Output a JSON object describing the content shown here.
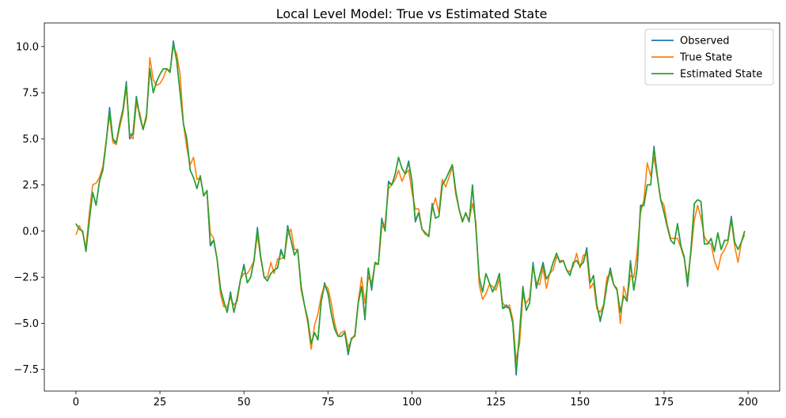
{
  "chart_data": {
    "type": "line",
    "title": "Local Level Model: True vs Estimated State",
    "xlabel": "",
    "ylabel": "",
    "xlim": [
      -9.4,
      209.4
    ],
    "ylim": [
      -8.67,
      11.28
    ],
    "xticks": [
      0,
      25,
      50,
      75,
      100,
      125,
      150,
      175,
      200
    ],
    "xtick_labels": [
      "0",
      "25",
      "50",
      "75",
      "100",
      "125",
      "150",
      "175",
      "200"
    ],
    "yticks": [
      -7.5,
      -5.0,
      -2.5,
      0.0,
      2.5,
      5.0,
      7.5,
      10.0
    ],
    "ytick_labels": [
      "−7.5",
      "−5.0",
      "−2.5",
      "0.0",
      "2.5",
      "5.0",
      "7.5",
      "10.0"
    ],
    "grid": false,
    "legend_position": "top-right",
    "series": [
      {
        "name": "Observed",
        "color": "#1f77b4",
        "values": [
          0.4,
          0.1,
          0.0,
          -1.1,
          0.6,
          2.1,
          1.4,
          2.7,
          3.3,
          4.8,
          6.7,
          5.0,
          4.7,
          5.8,
          6.6,
          8.1,
          5.0,
          5.3,
          7.3,
          6.2,
          5.5,
          6.3,
          8.8,
          7.5,
          8.1,
          8.5,
          8.8,
          8.8,
          8.6,
          10.3,
          9.2,
          7.5,
          5.8,
          5.0,
          3.3,
          2.9,
          2.3,
          3.0,
          1.9,
          2.2,
          -0.8,
          -0.5,
          -1.5,
          -3.1,
          -3.8,
          -4.4,
          -3.3,
          -4.4,
          -3.6,
          -2.6,
          -1.8,
          -2.8,
          -2.5,
          -1.6,
          0.2,
          -1.4,
          -2.5,
          -2.7,
          -2.3,
          -2.1,
          -2.0,
          -1.0,
          -1.5,
          0.3,
          -0.5,
          -1.3,
          -1.0,
          -3.0,
          -4.0,
          -4.8,
          -6.1,
          -5.5,
          -5.9,
          -3.8,
          -2.8,
          -3.4,
          -4.5,
          -5.3,
          -5.7,
          -5.7,
          -5.5,
          -6.7,
          -5.8,
          -5.7,
          -3.9,
          -3.0,
          -4.8,
          -2.0,
          -3.2,
          -1.7,
          -1.8,
          0.7,
          0.0,
          2.7,
          2.5,
          3.1,
          4.0,
          3.4,
          3.1,
          3.8,
          2.7,
          0.5,
          1.0,
          0.1,
          -0.1,
          -0.3,
          1.5,
          0.7,
          0.8,
          2.5,
          2.8,
          3.2,
          3.6,
          2.2,
          1.2,
          0.5,
          1.0,
          0.5,
          2.5,
          0.2,
          -2.5,
          -3.3,
          -2.3,
          -2.8,
          -3.3,
          -2.9,
          -2.3,
          -4.2,
          -4.0,
          -4.2,
          -5.0,
          -7.8,
          -5.5,
          -3.0,
          -4.3,
          -3.9,
          -1.7,
          -3.1,
          -2.4,
          -1.7,
          -2.6,
          -2.3,
          -1.7,
          -1.2,
          -1.7,
          -1.6,
          -2.1,
          -2.4,
          -1.7,
          -1.6,
          -1.9,
          -1.7,
          -0.9,
          -2.8,
          -2.4,
          -4.0,
          -4.9,
          -4.1,
          -2.9,
          -2.0,
          -2.9,
          -3.2,
          -4.4,
          -3.5,
          -3.8,
          -1.6,
          -3.2,
          -2.0,
          1.4,
          1.4,
          2.5,
          2.5,
          4.6,
          3.0,
          1.7,
          1.0,
          0.2,
          -0.5,
          -0.7,
          0.4,
          -0.8,
          -1.4,
          -3.0,
          -1.0,
          1.5,
          1.7,
          1.6,
          -0.7,
          -0.7,
          -0.4,
          -1.1,
          -0.1,
          -1.0,
          -0.5,
          -0.5,
          0.8,
          -0.6,
          -1.0,
          -0.6,
          0.0
        ]
      },
      {
        "name": "True State",
        "color": "#ff7f0e",
        "values": [
          -0.2,
          0.3,
          -0.1,
          -0.9,
          1.0,
          2.5,
          2.6,
          2.9,
          3.5,
          4.9,
          6.3,
          4.8,
          4.7,
          5.6,
          6.4,
          7.8,
          5.2,
          5.0,
          6.9,
          6.4,
          5.5,
          6.1,
          9.4,
          8.2,
          7.9,
          8.0,
          8.3,
          8.8,
          8.7,
          10.0,
          9.6,
          8.5,
          5.8,
          4.5,
          3.6,
          4.0,
          2.8,
          2.9,
          2.0,
          2.1,
          -0.1,
          -0.4,
          -1.5,
          -3.4,
          -4.1,
          -4.1,
          -3.6,
          -4.0,
          -3.8,
          -2.6,
          -2.3,
          -2.3,
          -2.0,
          -1.6,
          -0.2,
          -1.5,
          -2.5,
          -2.5,
          -1.7,
          -2.3,
          -1.5,
          -1.5,
          -1.4,
          -0.2,
          0.1,
          -1.0,
          -1.0,
          -3.2,
          -4.0,
          -5.0,
          -6.4,
          -5.1,
          -4.5,
          -3.5,
          -2.9,
          -3.1,
          -3.9,
          -5.0,
          -5.7,
          -5.5,
          -5.4,
          -6.3,
          -5.9,
          -5.6,
          -3.8,
          -2.5,
          -3.9,
          -2.5,
          -2.8,
          -1.8,
          -1.8,
          0.2,
          0.4,
          2.3,
          2.5,
          2.8,
          3.3,
          2.7,
          3.1,
          3.3,
          2.1,
          1.2,
          1.2,
          0.1,
          -0.2,
          -0.2,
          1.2,
          1.8,
          1.0,
          2.8,
          2.4,
          2.9,
          3.5,
          2.0,
          1.2,
          0.6,
          0.9,
          0.6,
          1.5,
          0.5,
          -2.9,
          -3.7,
          -3.4,
          -2.9,
          -3.0,
          -3.2,
          -2.6,
          -3.9,
          -4.1,
          -4.0,
          -4.8,
          -7.0,
          -6.1,
          -3.5,
          -3.9,
          -3.6,
          -1.9,
          -2.8,
          -2.9,
          -2.0,
          -3.1,
          -2.3,
          -2.1,
          -1.4,
          -1.6,
          -1.6,
          -2.1,
          -2.2,
          -1.9,
          -1.2,
          -2.0,
          -1.3,
          -1.3,
          -3.1,
          -2.8,
          -4.2,
          -4.4,
          -4.0,
          -2.5,
          -2.3,
          -2.9,
          -3.1,
          -5.0,
          -3.0,
          -3.7,
          -2.4,
          -2.5,
          -1.1,
          1.0,
          1.7,
          3.7,
          3.0,
          4.0,
          2.9,
          1.7,
          1.4,
          0.3,
          -0.4,
          -0.4,
          -0.4,
          -0.9,
          -1.5,
          -2.6,
          -1.2,
          0.6,
          1.4,
          0.7,
          -0.3,
          -0.6,
          -0.7,
          -1.6,
          -2.1,
          -1.3,
          -1.0,
          -0.6,
          0.6,
          -0.8,
          -1.7,
          -0.6,
          -0.2
        ]
      },
      {
        "name": "Estimated State",
        "color": "#2ca02c",
        "values": [
          0.4,
          0.1,
          0.0,
          -1.1,
          0.6,
          2.1,
          1.4,
          2.7,
          3.3,
          4.8,
          6.5,
          5.0,
          4.8,
          5.8,
          6.6,
          8.0,
          5.2,
          5.3,
          7.2,
          6.2,
          5.5,
          6.3,
          8.8,
          7.5,
          8.1,
          8.5,
          8.8,
          8.8,
          8.6,
          10.2,
          9.2,
          7.5,
          5.8,
          5.0,
          3.3,
          2.9,
          2.3,
          3.0,
          1.9,
          2.2,
          -0.7,
          -0.5,
          -1.5,
          -3.1,
          -3.8,
          -4.4,
          -3.4,
          -4.4,
          -3.6,
          -2.6,
          -1.9,
          -2.8,
          -2.5,
          -1.6,
          0.1,
          -1.4,
          -2.5,
          -2.7,
          -2.3,
          -2.1,
          -2.0,
          -1.1,
          -1.5,
          0.2,
          -0.5,
          -1.3,
          -1.0,
          -3.0,
          -4.0,
          -4.8,
          -6.1,
          -5.5,
          -5.9,
          -3.8,
          -2.9,
          -3.4,
          -4.5,
          -5.3,
          -5.7,
          -5.7,
          -5.5,
          -6.6,
          -5.8,
          -5.7,
          -3.9,
          -3.0,
          -4.7,
          -2.0,
          -3.1,
          -1.7,
          -1.8,
          0.6,
          0.0,
          2.6,
          2.5,
          3.1,
          4.0,
          3.4,
          3.1,
          3.7,
          2.7,
          0.6,
          1.0,
          0.1,
          -0.1,
          -0.3,
          1.4,
          0.7,
          0.8,
          2.5,
          2.8,
          3.2,
          3.6,
          2.2,
          1.2,
          0.5,
          1.0,
          0.5,
          2.4,
          0.2,
          -2.5,
          -3.3,
          -2.3,
          -2.8,
          -3.3,
          -2.9,
          -2.3,
          -4.2,
          -4.1,
          -4.2,
          -5.0,
          -7.6,
          -5.5,
          -3.1,
          -4.3,
          -3.9,
          -1.8,
          -3.0,
          -2.4,
          -1.8,
          -2.6,
          -2.3,
          -1.7,
          -1.2,
          -1.7,
          -1.6,
          -2.1,
          -2.4,
          -1.7,
          -1.6,
          -1.9,
          -1.7,
          -1.0,
          -2.8,
          -2.4,
          -4.0,
          -4.8,
          -4.1,
          -2.9,
          -2.1,
          -2.9,
          -3.2,
          -4.4,
          -3.5,
          -3.8,
          -1.7,
          -3.2,
          -2.0,
          1.3,
          1.4,
          2.5,
          2.5,
          4.5,
          3.0,
          1.7,
          1.0,
          0.2,
          -0.5,
          -0.7,
          0.4,
          -0.8,
          -1.4,
          -2.9,
          -1.0,
          1.5,
          1.7,
          1.6,
          -0.7,
          -0.7,
          -0.4,
          -1.1,
          -0.1,
          -1.0,
          -0.5,
          -0.5,
          0.7,
          -0.6,
          -1.0,
          -0.6,
          0.0
        ]
      }
    ]
  }
}
